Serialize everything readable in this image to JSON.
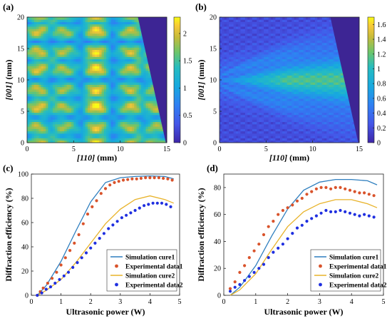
{
  "colors": {
    "sim1": "#2f7fbf",
    "exp1": "#d9532b",
    "sim2": "#e8b32a",
    "exp2": "#1f2fe0",
    "mask": "#3d2594",
    "map_low": "#3e26a8",
    "map_mid": "#26bcc0",
    "map_high": "#f9fb15"
  },
  "chart_data": [
    {
      "panel": "(a)",
      "type": "heatmap",
      "xlabel_pre": "[110]",
      "xlabel_post": " (mm)",
      "ylabel_pre": "[001]",
      "ylabel_post": " (mm)",
      "xlim": [
        0,
        15
      ],
      "ylim": [
        0,
        20
      ],
      "xticks": [
        "0",
        "5",
        "10",
        "15"
      ],
      "yticks": [
        "0",
        "5",
        "10",
        "15",
        "20"
      ],
      "colorbar_range": [
        0,
        2.3
      ],
      "colorbar_ticks": [
        "0",
        "0.5",
        "1",
        "1.5",
        "2"
      ],
      "mask_polygon": [
        [
          11.9,
          20
        ],
        [
          15,
          20
        ],
        [
          15,
          0
        ],
        [
          14.9,
          0
        ]
      ]
    },
    {
      "panel": "(b)",
      "type": "heatmap",
      "xlabel_pre": "[110]",
      "xlabel_post": " (mm)",
      "ylabel_pre": "[001]",
      "ylabel_post": " (mm)",
      "xlim": [
        0,
        15
      ],
      "ylim": [
        0,
        20
      ],
      "xticks": [
        "0",
        "5",
        "10",
        "15"
      ],
      "yticks": [
        "0",
        "5",
        "10",
        "15",
        "20"
      ],
      "colorbar_range": [
        0,
        1.7
      ],
      "colorbar_ticks": [
        "0",
        "0.2",
        "0.4",
        "0.6",
        "0.8",
        "1",
        "1.2",
        "1.4",
        "1.6"
      ],
      "mask_polygon": [
        [
          11.9,
          20
        ],
        [
          15,
          20
        ],
        [
          15,
          0
        ],
        [
          14.9,
          0
        ]
      ]
    },
    {
      "panel": "(c)",
      "type": "line",
      "xlabel": "Ultrasonic power (W)",
      "ylabel": "Diffraction efficiency (%)",
      "xlim": [
        0,
        5
      ],
      "ylim": [
        0,
        100
      ],
      "xticks": [
        "0",
        "1",
        "2",
        "3",
        "4",
        "5"
      ],
      "yticks": [
        "0",
        "20",
        "40",
        "60",
        "80",
        "100"
      ],
      "legend_position": "bottom-right",
      "series": [
        {
          "name": "Simulation cure1",
          "kind": "line",
          "color": "sim1",
          "x": [
            0.2,
            0.5,
            1.0,
            1.5,
            2.0,
            2.5,
            3.0,
            3.5,
            4.0,
            4.5,
            4.8
          ],
          "y": [
            0,
            8,
            28,
            53,
            77,
            93,
            97,
            98,
            98.5,
            98,
            96
          ]
        },
        {
          "name": "Experimental data1",
          "kind": "points",
          "color": "exp1",
          "x": [
            0.2,
            0.3,
            0.4,
            0.55,
            0.7,
            0.85,
            1.0,
            1.15,
            1.3,
            1.45,
            1.6,
            1.75,
            1.9,
            2.05,
            2.2,
            2.35,
            2.5,
            2.65,
            2.8,
            2.95,
            3.1,
            3.25,
            3.4,
            3.55,
            3.7,
            3.85,
            4.0,
            4.15,
            4.3,
            4.45,
            4.6,
            4.75
          ],
          "y": [
            0,
            3,
            6,
            10,
            14,
            19,
            25,
            31,
            37,
            43,
            50,
            59,
            67,
            73,
            78,
            84,
            88,
            91,
            93,
            94,
            95,
            95.5,
            96,
            96,
            96.5,
            97,
            97,
            97,
            97,
            96.5,
            96,
            95
          ]
        },
        {
          "name": "Simulation cure2",
          "kind": "line",
          "color": "sim2",
          "x": [
            0.2,
            0.5,
            1.0,
            1.5,
            2.0,
            2.5,
            3.0,
            3.5,
            4.0,
            4.5,
            4.8
          ],
          "y": [
            0,
            4,
            13,
            27,
            43,
            59,
            71,
            79,
            82,
            79,
            76
          ]
        },
        {
          "name": "Experimental data2",
          "kind": "points",
          "color": "exp2",
          "x": [
            0.2,
            0.35,
            0.5,
            0.65,
            0.8,
            0.95,
            1.1,
            1.25,
            1.4,
            1.55,
            1.7,
            1.85,
            2.0,
            2.15,
            2.3,
            2.45,
            2.6,
            2.75,
            2.9,
            3.05,
            3.2,
            3.35,
            3.5,
            3.65,
            3.8,
            3.95,
            4.1,
            4.25,
            4.4,
            4.55,
            4.7
          ],
          "y": [
            0,
            2,
            5,
            7,
            10,
            13,
            16,
            19,
            23,
            27,
            31,
            35,
            39,
            43,
            47,
            51,
            55,
            58,
            61,
            64,
            66,
            68,
            70,
            72,
            74,
            75,
            76,
            76,
            76,
            75,
            73
          ]
        }
      ]
    },
    {
      "panel": "(d)",
      "type": "line",
      "xlabel": "Ultrasonic power (W)",
      "ylabel": "Diffraction efficiency (%)",
      "xlim": [
        0,
        5
      ],
      "ylim": [
        0,
        90
      ],
      "xticks": [
        "0",
        "1",
        "2",
        "3",
        "4",
        "5"
      ],
      "yticks": [
        "0",
        "20",
        "40",
        "60",
        "80"
      ],
      "legend_position": "bottom-right",
      "series": [
        {
          "name": "Simulation cure1",
          "kind": "line",
          "color": "sim1",
          "x": [
            0.2,
            0.5,
            1.0,
            1.5,
            2.0,
            2.5,
            3.0,
            3.5,
            4.0,
            4.5,
            4.8
          ],
          "y": [
            0,
            6,
            22,
            44,
            64,
            78,
            84,
            86,
            86,
            85,
            82
          ]
        },
        {
          "name": "Experimental data1",
          "kind": "points",
          "color": "exp1",
          "x": [
            0.2,
            0.35,
            0.5,
            0.65,
            0.8,
            0.95,
            1.1,
            1.25,
            1.4,
            1.55,
            1.7,
            1.85,
            2.0,
            2.15,
            2.3,
            2.45,
            2.6,
            2.75,
            2.9,
            3.05,
            3.2,
            3.35,
            3.5,
            3.65,
            3.8,
            3.95,
            4.1,
            4.25,
            4.4,
            4.55,
            4.7
          ],
          "y": [
            5,
            10,
            17,
            22,
            28,
            33,
            38,
            45,
            51,
            55,
            60,
            63,
            65,
            67,
            70,
            72,
            75,
            77,
            79,
            80,
            80,
            79,
            80,
            80,
            79,
            78,
            77,
            76,
            76,
            75,
            74
          ]
        },
        {
          "name": "Simulation cure2",
          "kind": "line",
          "color": "sim2",
          "x": [
            0.2,
            0.5,
            1.0,
            1.5,
            2.0,
            2.5,
            3.0,
            3.5,
            4.0,
            4.5,
            4.8
          ],
          "y": [
            0,
            4,
            16,
            34,
            51,
            62,
            68,
            71,
            71,
            68,
            65
          ]
        },
        {
          "name": "Experimental data2",
          "kind": "points",
          "color": "exp2",
          "x": [
            0.2,
            0.35,
            0.5,
            0.65,
            0.8,
            0.95,
            1.1,
            1.25,
            1.4,
            1.55,
            1.7,
            1.85,
            2.0,
            2.15,
            2.3,
            2.45,
            2.6,
            2.75,
            2.9,
            3.05,
            3.2,
            3.35,
            3.5,
            3.65,
            3.8,
            3.95,
            4.1,
            4.25,
            4.4,
            4.55,
            4.7
          ],
          "y": [
            3,
            6,
            8,
            11,
            14,
            17,
            20,
            23,
            28,
            32,
            35,
            38,
            42,
            46,
            50,
            52,
            55,
            57,
            59,
            61,
            63,
            62,
            62,
            63,
            62,
            61,
            60,
            59,
            60,
            59,
            58
          ]
        }
      ]
    }
  ]
}
